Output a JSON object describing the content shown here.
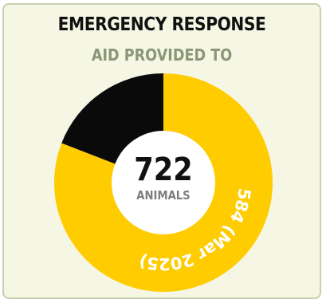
{
  "card": {
    "title": "EMERGENCY RESPONSE",
    "subtitle": "AID PROVIDED TO"
  },
  "chart_data": {
    "type": "pie",
    "variant": "donut",
    "title": "EMERGENCY RESPONSE",
    "subtitle": "AID PROVIDED TO",
    "total": 722,
    "center_value": "722",
    "center_label": "ANIMALS",
    "slices": [
      {
        "label": "",
        "value": 584,
        "data_label": "584 (Mar 2025)",
        "color": "#ffcc00"
      },
      {
        "label": "",
        "value": 138,
        "data_label": "",
        "color": "#0a0a0a"
      }
    ]
  },
  "colors": {
    "card_bg": "#f6f6e4",
    "card_border": "#c9cfad",
    "subtitle": "#8a9776",
    "center_text": "#111111",
    "center_label": "#7d7d7d"
  }
}
